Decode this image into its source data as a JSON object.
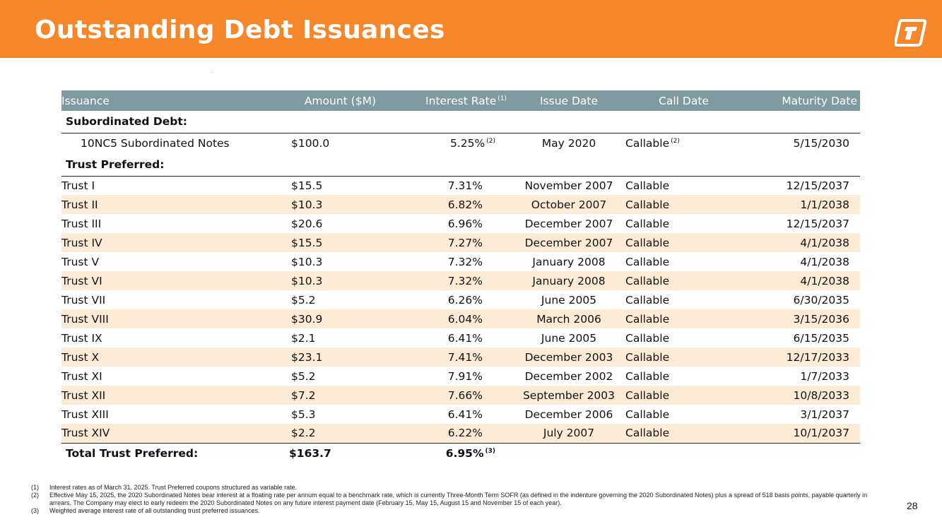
{
  "header": {
    "title": "Outstanding Debt Issuances",
    "accent_color": "#f5862a",
    "logo_icon": "company-logo-icon"
  },
  "table": {
    "columns": [
      "Issuance",
      "Amount ($M)",
      "Interest Rate",
      "Issue Date",
      "Call Date",
      "Maturity Date"
    ],
    "rate_header_note": "(1)",
    "section_subordinated": "Subordinated Debt:",
    "subordinated": {
      "issuance": "10NC5 Subordinated Notes",
      "amount": "$100.0",
      "rate": "5.25%",
      "rate_note": "(2)",
      "issue_date": "May 2020",
      "call_date": "Callable",
      "call_note": "(2)",
      "maturity": "5/15/2030"
    },
    "section_trust": "Trust Preferred:",
    "trusts": [
      {
        "issuance": "Trust I",
        "amount": "$15.5",
        "rate": "7.31%",
        "issue_date": "November 2007",
        "call_date": "Callable",
        "maturity": "12/15/2037"
      },
      {
        "issuance": "Trust II",
        "amount": "$10.3",
        "rate": "6.82%",
        "issue_date": "October 2007",
        "call_date": "Callable",
        "maturity": "1/1/2038"
      },
      {
        "issuance": "Trust III",
        "amount": "$20.6",
        "rate": "6.96%",
        "issue_date": "December 2007",
        "call_date": "Callable",
        "maturity": "12/15/2037"
      },
      {
        "issuance": "Trust IV",
        "amount": "$15.5",
        "rate": "7.27%",
        "issue_date": "December 2007",
        "call_date": "Callable",
        "maturity": "4/1/2038"
      },
      {
        "issuance": "Trust V",
        "amount": "$10.3",
        "rate": "7.32%",
        "issue_date": "January 2008",
        "call_date": "Callable",
        "maturity": "4/1/2038"
      },
      {
        "issuance": "Trust VI",
        "amount": "$10.3",
        "rate": "7.32%",
        "issue_date": "January 2008",
        "call_date": "Callable",
        "maturity": "4/1/2038"
      },
      {
        "issuance": "Trust VII",
        "amount": "$5.2",
        "rate": "6.26%",
        "issue_date": "June 2005",
        "call_date": "Callable",
        "maturity": "6/30/2035"
      },
      {
        "issuance": "Trust VIII",
        "amount": "$30.9",
        "rate": "6.04%",
        "issue_date": "March 2006",
        "call_date": "Callable",
        "maturity": "3/15/2036"
      },
      {
        "issuance": "Trust IX",
        "amount": "$2.1",
        "rate": "6.41%",
        "issue_date": "June 2005",
        "call_date": "Callable",
        "maturity": "6/15/2035"
      },
      {
        "issuance": "Trust X",
        "amount": "$23.1",
        "rate": "7.41%",
        "issue_date": "December 2003",
        "call_date": "Callable",
        "maturity": "12/17/2033"
      },
      {
        "issuance": "Trust XI",
        "amount": "$5.2",
        "rate": "7.91%",
        "issue_date": "December 2002",
        "call_date": "Callable",
        "maturity": "1/7/2033"
      },
      {
        "issuance": "Trust XII",
        "amount": "$7.2",
        "rate": "7.66%",
        "issue_date": "September 2003",
        "call_date": "Callable",
        "maturity": "10/8/2033"
      },
      {
        "issuance": "Trust XIII",
        "amount": "$5.3",
        "rate": "6.41%",
        "issue_date": "December 2006",
        "call_date": "Callable",
        "maturity": "3/1/2037"
      },
      {
        "issuance": "Trust XIV",
        "amount": "$2.2",
        "rate": "6.22%",
        "issue_date": "July 2007",
        "call_date": "Callable",
        "maturity": "10/1/2037"
      }
    ],
    "total": {
      "label": "Total Trust Preferred:",
      "amount": "$163.7",
      "rate": "6.95%",
      "rate_note": "(3)"
    },
    "header_color": "#7f9ba0",
    "alt_row_color": "#fdebd6"
  },
  "footnotes": [
    {
      "num": "(1)",
      "text": "Interest rates as of March 31, 2025. Trust Preferred coupons structured as variable rate."
    },
    {
      "num": "(2)",
      "text": "Effective May 15, 2025, the 2020 Subordinated Notes bear interest at a floating rate per annum equal to a benchmark rate, which is currently Three-Month Term SOFR (as defined in the indenture governing the 2020 Subordinated Notes) plus a spread of 518 basis points, payable quarterly in arrears. The Company may elect to early redeem the 2020 Subordinated Notes on any future interest payment date (February 15, May 15, August 15 and November 15 of each year)."
    },
    {
      "num": "(3)",
      "text": "Weighted average interest rate of all outstanding trust preferred issuances."
    }
  ],
  "page_number": "28"
}
